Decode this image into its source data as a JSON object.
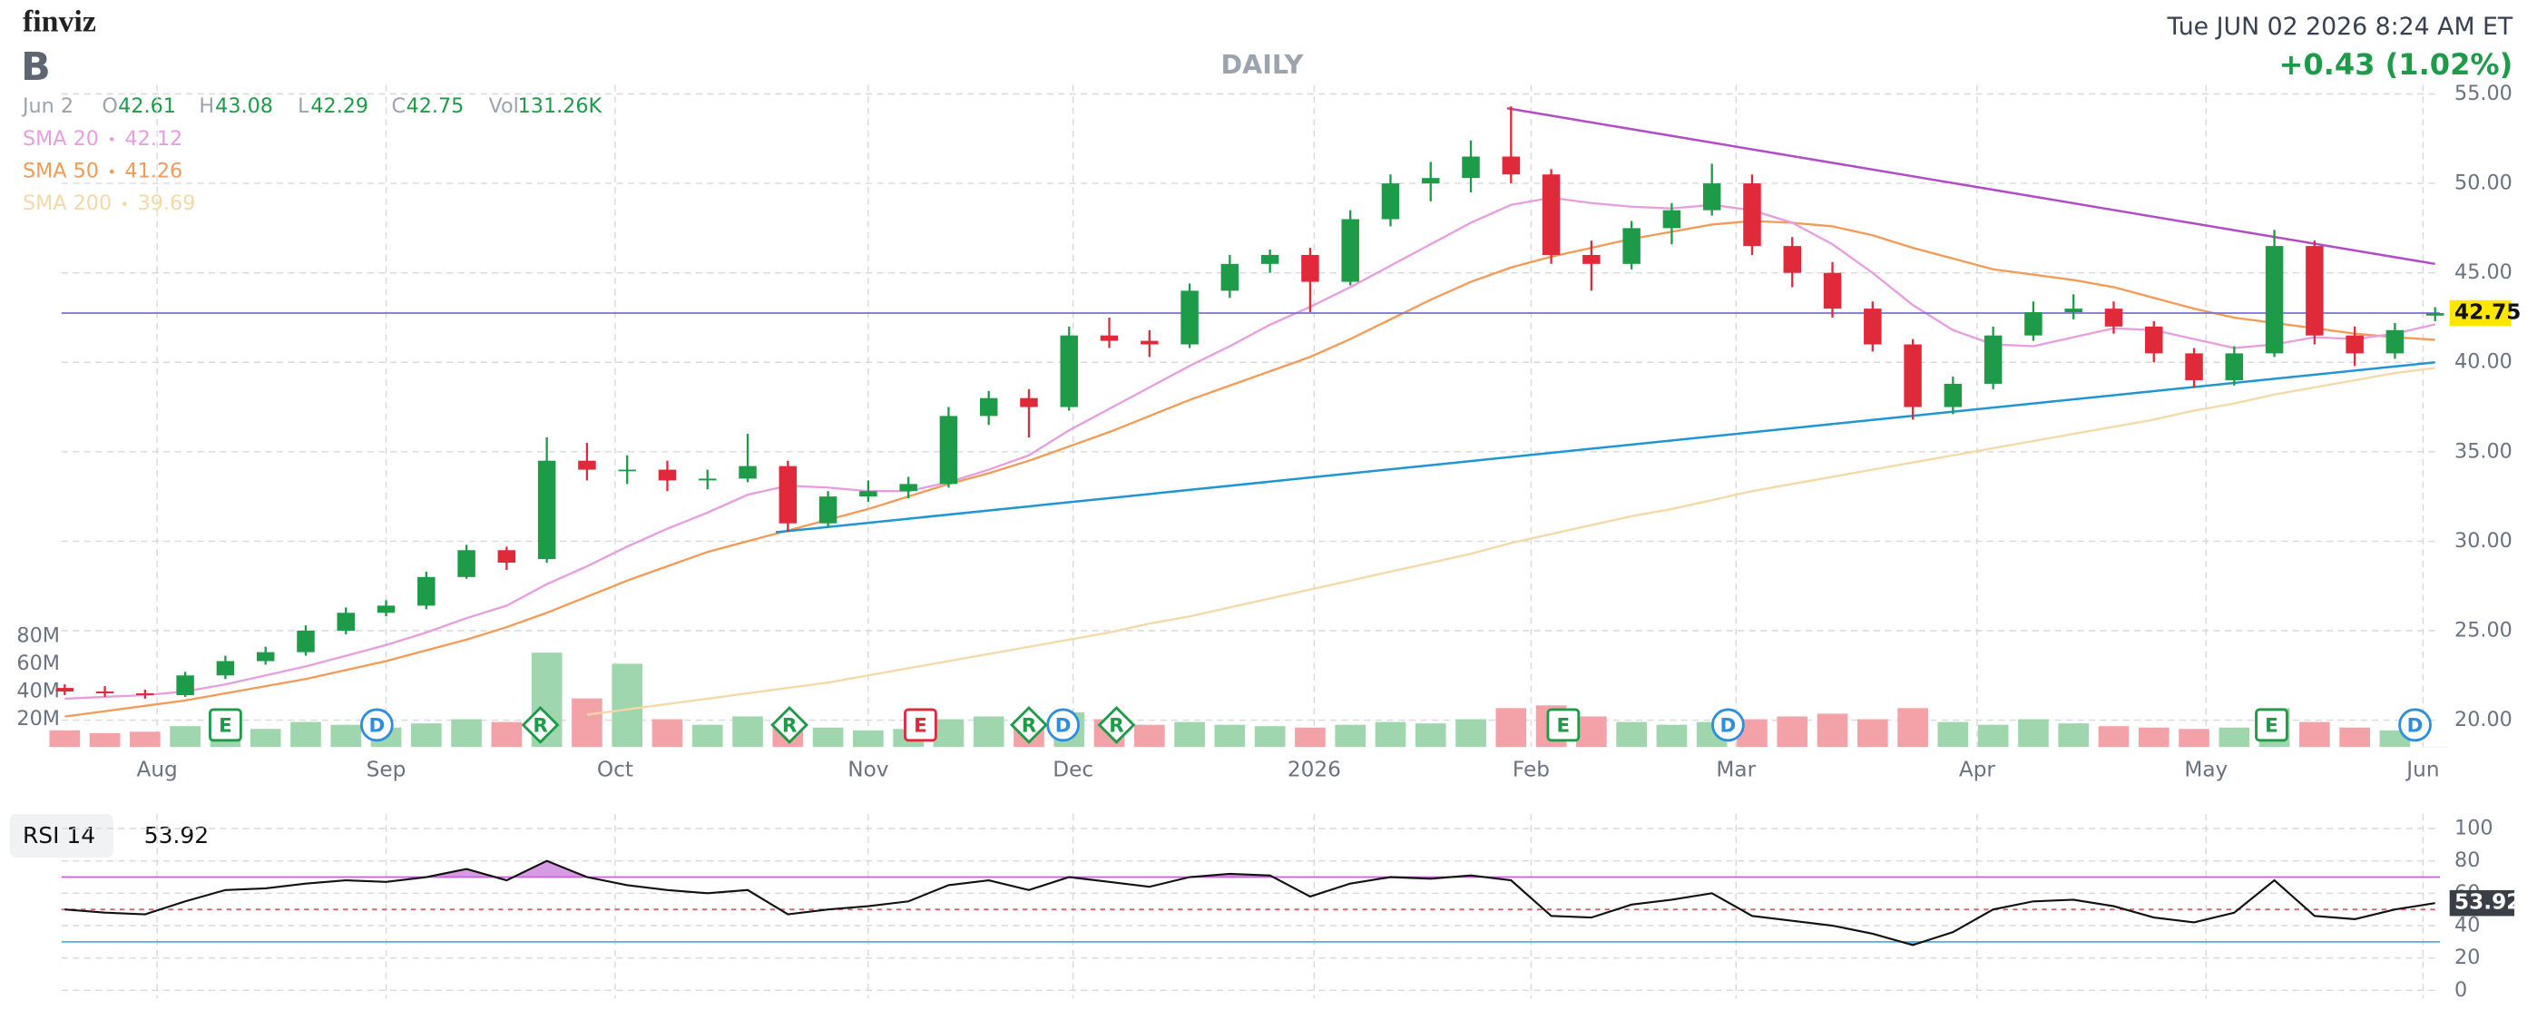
{
  "header": {
    "logo": "finviz",
    "ticker": "B",
    "timeframe": "DAILY",
    "datetime": "Tue JUN 02 2026 8:24 AM ET",
    "change": "+0.43 (1.02%)",
    "bar_date": "Jun 2",
    "open_label": "O",
    "high_label": "H",
    "low_label": "L",
    "close_label": "C",
    "volume_label": "Vol",
    "volume_text": "131.26K"
  },
  "chart_data": {
    "type": "candlestick",
    "up_color": "#1e9b48",
    "down_color": "#e02a3a",
    "xlim": [
      -0.08,
      59.12
    ],
    "xticks": [
      {
        "value": 2.3,
        "label": "Aug"
      },
      {
        "value": 8,
        "label": "Sep"
      },
      {
        "value": 13.7,
        "label": "Oct"
      },
      {
        "value": 20,
        "label": "Nov"
      },
      {
        "value": 25.1,
        "label": "Dec"
      },
      {
        "value": 31.1,
        "label": "2026"
      },
      {
        "value": 36.5,
        "label": "Feb"
      },
      {
        "value": 41.6,
        "label": "Mar"
      },
      {
        "value": 47.6,
        "label": "Apr"
      },
      {
        "value": 53.3,
        "label": "May"
      },
      {
        "value": 58.7,
        "label": "Jun"
      }
    ],
    "ylim": [
      18.5,
      55.5
    ],
    "yticks": [
      {
        "value": 20,
        "label": "20.00"
      },
      {
        "value": 25,
        "label": "25.00"
      },
      {
        "value": 30,
        "label": "30.00"
      },
      {
        "value": 35,
        "label": "35.00"
      },
      {
        "value": 40,
        "label": "40.00"
      },
      {
        "value": 45,
        "label": "45.00"
      },
      {
        "value": 50,
        "label": "50.00"
      },
      {
        "value": 55,
        "label": "55.00"
      }
    ],
    "grid": true,
    "candles": [
      [
        21.8,
        22.0,
        21.4,
        21.6
      ],
      [
        21.6,
        21.9,
        21.3,
        21.5
      ],
      [
        21.5,
        21.7,
        21.2,
        21.4
      ],
      [
        21.4,
        22.7,
        21.3,
        22.5
      ],
      [
        22.5,
        23.6,
        22.3,
        23.3
      ],
      [
        23.3,
        24.1,
        23.1,
        23.8
      ],
      [
        23.8,
        25.3,
        23.6,
        25.0
      ],
      [
        25.0,
        26.3,
        24.8,
        26.0
      ],
      [
        26.0,
        26.7,
        25.8,
        26.4
      ],
      [
        26.4,
        28.3,
        26.2,
        28.0
      ],
      [
        28.0,
        29.8,
        27.9,
        29.5
      ],
      [
        29.5,
        29.7,
        28.4,
        28.8
      ],
      [
        29.0,
        35.8,
        28.8,
        34.5
      ],
      [
        34.5,
        35.5,
        33.4,
        34.0
      ],
      [
        34.0,
        34.8,
        33.2,
        34.0
      ],
      [
        34.0,
        34.5,
        32.8,
        33.4
      ],
      [
        33.4,
        34.0,
        32.9,
        33.5
      ],
      [
        33.5,
        36.0,
        33.3,
        34.2
      ],
      [
        34.2,
        34.5,
        30.5,
        31.0
      ],
      [
        31.0,
        32.8,
        30.8,
        32.5
      ],
      [
        32.5,
        33.4,
        32.2,
        32.8
      ],
      [
        32.8,
        33.6,
        32.4,
        33.2
      ],
      [
        33.2,
        37.5,
        33.0,
        37.0
      ],
      [
        37.0,
        38.4,
        36.5,
        38.0
      ],
      [
        38.0,
        38.5,
        35.8,
        37.5
      ],
      [
        37.5,
        42.0,
        37.3,
        41.5
      ],
      [
        41.5,
        42.5,
        40.8,
        41.2
      ],
      [
        41.2,
        41.8,
        40.3,
        41.0
      ],
      [
        41.0,
        44.4,
        40.8,
        44.0
      ],
      [
        44.0,
        46.0,
        43.6,
        45.5
      ],
      [
        45.5,
        46.3,
        45.0,
        46.0
      ],
      [
        46.0,
        46.4,
        42.8,
        44.5
      ],
      [
        44.5,
        48.5,
        44.3,
        48.0
      ],
      [
        48.0,
        50.5,
        47.6,
        50.0
      ],
      [
        50.0,
        51.2,
        49.0,
        50.3
      ],
      [
        50.3,
        52.4,
        49.5,
        51.5
      ],
      [
        51.5,
        54.3,
        50.0,
        50.5
      ],
      [
        50.5,
        50.8,
        45.5,
        46.0
      ],
      [
        46.0,
        46.8,
        44.0,
        45.5
      ],
      [
        45.5,
        47.9,
        45.2,
        47.5
      ],
      [
        47.5,
        48.9,
        46.6,
        48.5
      ],
      [
        48.5,
        51.1,
        48.2,
        50.0
      ],
      [
        50.0,
        50.5,
        46.0,
        46.5
      ],
      [
        46.5,
        47.0,
        44.2,
        45.0
      ],
      [
        45.0,
        45.6,
        42.5,
        43.0
      ],
      [
        43.0,
        43.4,
        40.6,
        41.0
      ],
      [
        41.0,
        41.3,
        36.8,
        37.5
      ],
      [
        37.5,
        39.2,
        37.1,
        38.8
      ],
      [
        38.8,
        42.0,
        38.5,
        41.5
      ],
      [
        41.5,
        43.4,
        41.2,
        42.8
      ],
      [
        42.8,
        43.8,
        42.4,
        43.0
      ],
      [
        43.0,
        43.4,
        41.6,
        42.0
      ],
      [
        42.0,
        42.3,
        40.0,
        40.5
      ],
      [
        40.5,
        40.8,
        38.6,
        39.0
      ],
      [
        39.0,
        40.9,
        38.7,
        40.5
      ],
      [
        40.5,
        47.4,
        40.3,
        46.5
      ],
      [
        46.5,
        46.8,
        41.0,
        41.5
      ],
      [
        41.5,
        42.0,
        39.8,
        40.5
      ],
      [
        40.5,
        42.2,
        40.2,
        41.8
      ],
      [
        42.61,
        43.08,
        42.29,
        42.75
      ]
    ],
    "last_price_line_color": "#7a6fd8",
    "price_tag_color": "#ffe600",
    "sma": [
      {
        "name": "SMA 20",
        "color": "#e79de0",
        "values": [
          21.2,
          21.3,
          21.4,
          21.6,
          22.0,
          22.5,
          23.0,
          23.6,
          24.2,
          24.9,
          25.7,
          26.4,
          27.6,
          28.6,
          29.7,
          30.7,
          31.6,
          32.6,
          33.1,
          33.0,
          32.8,
          32.8,
          33.3,
          34.0,
          34.8,
          36.2,
          37.4,
          38.6,
          39.8,
          40.9,
          42.1,
          43.1,
          44.2,
          45.4,
          46.6,
          47.8,
          48.8,
          49.2,
          48.9,
          48.7,
          48.6,
          48.8,
          48.5,
          47.8,
          46.6,
          45.0,
          43.2,
          41.8,
          41.0,
          40.9,
          41.4,
          41.9,
          41.8,
          41.3,
          40.8,
          41.0,
          41.4,
          41.3,
          41.6,
          42.12
        ]
      },
      {
        "name": "SMA 50",
        "color": "#f59a55",
        "values": [
          20.2,
          20.5,
          20.8,
          21.1,
          21.5,
          21.9,
          22.3,
          22.8,
          23.3,
          23.9,
          24.5,
          25.2,
          26.0,
          26.9,
          27.8,
          28.6,
          29.4,
          30.0,
          30.6,
          31.2,
          31.8,
          32.5,
          33.2,
          33.8,
          34.5,
          35.3,
          36.1,
          37.0,
          37.9,
          38.7,
          39.5,
          40.3,
          41.3,
          42.4,
          43.5,
          44.5,
          45.3,
          45.9,
          46.4,
          46.9,
          47.3,
          47.7,
          47.9,
          47.8,
          47.6,
          47.1,
          46.4,
          45.8,
          45.2,
          44.9,
          44.6,
          44.2,
          43.6,
          43.0,
          42.5,
          42.2,
          41.9,
          41.6,
          41.4,
          41.26
        ]
      },
      {
        "name": "SMA 200",
        "color": "#f5d8a6",
        "values": [
          null,
          null,
          null,
          null,
          null,
          null,
          null,
          null,
          null,
          null,
          null,
          null,
          null,
          20.3,
          20.6,
          20.9,
          21.2,
          21.5,
          21.8,
          22.1,
          22.5,
          22.9,
          23.3,
          23.7,
          24.1,
          24.5,
          24.9,
          25.4,
          25.8,
          26.3,
          26.8,
          27.3,
          27.8,
          28.3,
          28.8,
          29.3,
          29.9,
          30.4,
          30.9,
          31.4,
          31.8,
          32.3,
          32.8,
          33.2,
          33.6,
          34.0,
          34.4,
          34.8,
          35.2,
          35.6,
          36.0,
          36.4,
          36.8,
          37.3,
          37.7,
          38.2,
          38.6,
          39.0,
          39.4,
          39.69
        ]
      }
    ],
    "trendlines": [
      {
        "color": "#b24cc6",
        "points": [
          [
            35.9,
            54.2
          ],
          [
            59.0,
            45.5
          ]
        ]
      },
      {
        "color": "#1f95d2",
        "points": [
          [
            17.7,
            30.5
          ],
          [
            59.0,
            40.0
          ]
        ]
      }
    ],
    "volume": {
      "up_color": "#9fd6ad",
      "down_color": "#f3a3a8",
      "ylim": [
        0,
        80
      ],
      "yticks": [
        {
          "value": 20,
          "label": "20M"
        },
        {
          "value": 40,
          "label": "40M"
        },
        {
          "value": 60,
          "label": "60M"
        },
        {
          "value": 80,
          "label": "80M"
        }
      ],
      "values": [
        12,
        10,
        11,
        15,
        14,
        13,
        18,
        16,
        14,
        17,
        20,
        18,
        68,
        35,
        60,
        20,
        16,
        22,
        18,
        14,
        12,
        13,
        20,
        22,
        18,
        25,
        20,
        16,
        18,
        16,
        15,
        14,
        16,
        18,
        17,
        20,
        28,
        30,
        22,
        18,
        16,
        18,
        20,
        22,
        24,
        20,
        28,
        18,
        16,
        20,
        17,
        15,
        14,
        13,
        14,
        28,
        18,
        14,
        12,
        0.13126
      ]
    },
    "events": [
      {
        "label": "E",
        "x": 4.0,
        "shape": "square",
        "color": "#1e9b48"
      },
      {
        "label": "D",
        "x": 7.77,
        "shape": "circle",
        "color": "#2d8ee0"
      },
      {
        "label": "R",
        "x": 11.84,
        "shape": "diamond",
        "color": "#1e9b48"
      },
      {
        "label": "R",
        "x": 18.04,
        "shape": "diamond",
        "color": "#1e9b48"
      },
      {
        "label": "E",
        "x": 21.3,
        "shape": "square",
        "color": "#e02a3a"
      },
      {
        "label": "R",
        "x": 24.0,
        "shape": "diamond",
        "color": "#1e9b48"
      },
      {
        "label": "D",
        "x": 24.85,
        "shape": "circle",
        "color": "#2d8ee0"
      },
      {
        "label": "R",
        "x": 26.18,
        "shape": "diamond",
        "color": "#1e9b48"
      },
      {
        "label": "E",
        "x": 37.3,
        "shape": "square",
        "color": "#1e9b48"
      },
      {
        "label": "D",
        "x": 41.4,
        "shape": "circle",
        "color": "#2d8ee0"
      },
      {
        "label": "E",
        "x": 54.93,
        "shape": "square",
        "color": "#1e9b48"
      },
      {
        "label": "D",
        "x": 58.5,
        "shape": "circle",
        "color": "#2d8ee0"
      }
    ],
    "rsi": {
      "name": "RSI 14",
      "color": "#111111",
      "ylim": [
        0,
        100
      ],
      "yticks": [
        0,
        20,
        40,
        60,
        80,
        100
      ],
      "levels": [
        {
          "value": 70,
          "color": "#c660d6",
          "fill": "#d99ae4"
        },
        {
          "value": 50,
          "color": "#e0606a"
        },
        {
          "value": 30,
          "color": "#4fb0e6",
          "fill": "#5cb6e8"
        }
      ],
      "values": [
        50,
        48,
        47,
        55,
        62,
        63,
        66,
        68,
        67,
        70,
        75,
        68,
        80,
        70,
        65,
        62,
        60,
        62,
        47,
        50,
        52,
        55,
        65,
        68,
        62,
        70,
        67,
        64,
        70,
        72,
        71,
        58,
        66,
        70,
        69,
        71,
        68,
        46,
        45,
        53,
        56,
        60,
        46,
        43,
        40,
        35,
        28,
        36,
        50,
        55,
        56,
        52,
        45,
        42,
        48,
        68,
        46,
        44,
        50,
        53.92
      ]
    }
  }
}
